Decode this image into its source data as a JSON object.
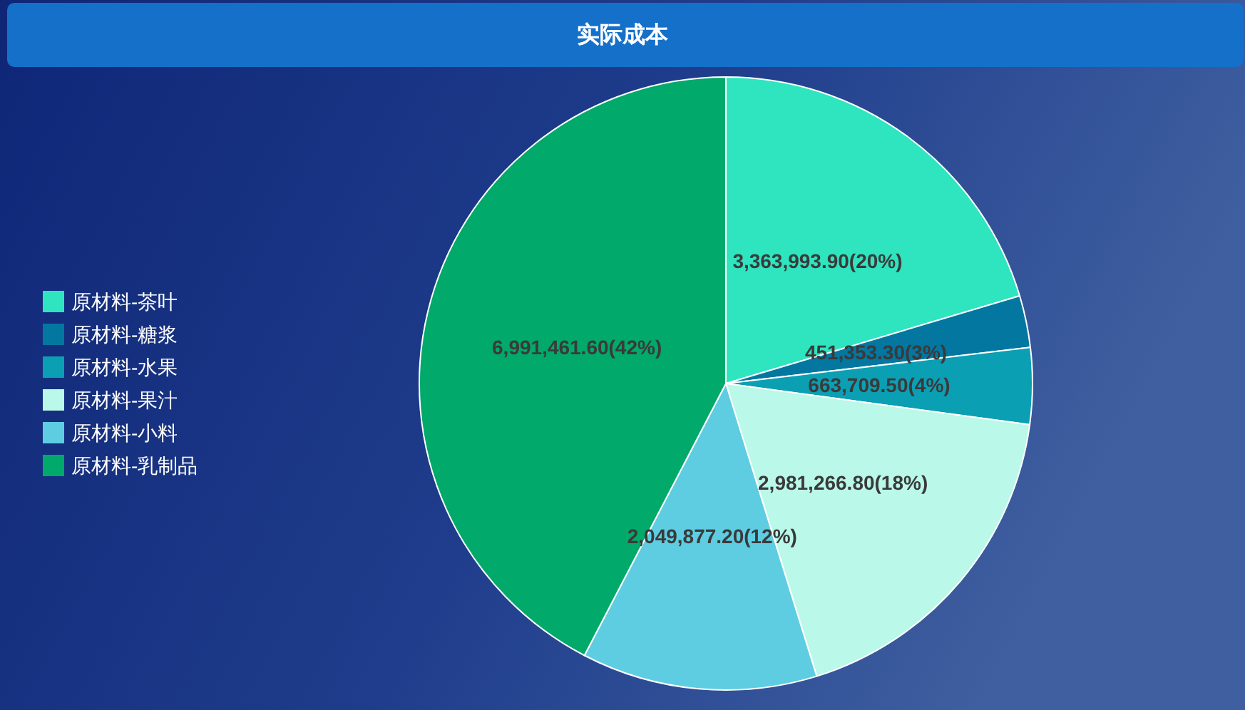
{
  "chart_data": {
    "type": "pie",
    "title": "实际成本",
    "categories": [
      "原材料-茶叶",
      "原材料-糖浆",
      "原材料-水果",
      "原材料-果汁",
      "原材料-小料",
      "原材料-乳制品"
    ],
    "values": [
      3363993.9,
      451353.3,
      663709.5,
      2981266.8,
      2049877.2,
      6991461.6
    ],
    "colors": [
      "#2ee5bf",
      "#0477a0",
      "#0b9fb4",
      "#baf8e9",
      "#5ecde2",
      "#01a96a"
    ],
    "value_labels": [
      "3,363,993.90(20%)",
      "451,353.30(3%)",
      "663,709.50(4%)",
      "2,981,266.80(18%)",
      "2,049,877.20(12%)",
      "6,991,461.60(42%)"
    ],
    "legend": "left"
  }
}
